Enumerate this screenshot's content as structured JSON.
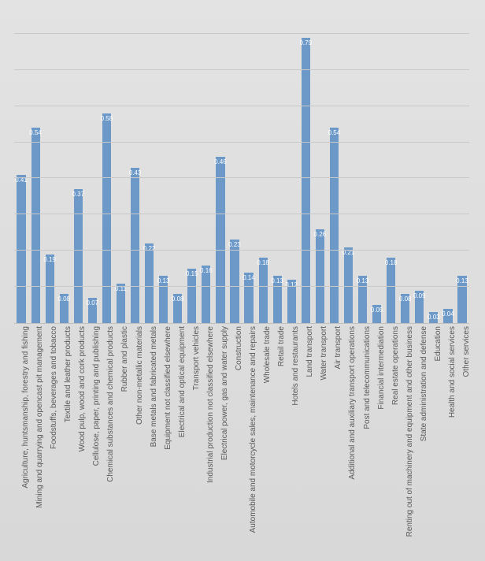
{
  "chart": {
    "type": "bar",
    "background_gradient": [
      "#e3e3e3",
      "#d8d8d8"
    ],
    "bar_color": "#6c99c8",
    "grid_color": "#c9c9c9",
    "label_color": "#5a5a5a",
    "value_label_color": "#ffffff",
    "ylim": [
      0,
      0.85
    ],
    "ytick_step": 0.1,
    "label_fontsize": 10,
    "value_label_fontsize": 8,
    "categories": [
      "Agriculture, huntsmanship, forestry and fishing",
      "Mining and quarrying and opencast pit management",
      "Foodstuffs, beverages and tobacco",
      "Textile and leather products",
      "Wood pulp, wood and cork products",
      "Cellulose, paper, printing and publishing",
      "Chemical substances and chemical products",
      "Rubber and plastic",
      "Other non-metallic materials",
      "Base metals and fabricated metals",
      "Equipment not classified elsewhere",
      "Electrical and optical equipment",
      "Transport vehicles",
      "Industrial production not classified elsewhere",
      "Electrical power, gas and water supply",
      "Construction",
      "Automobile and motorcycle sales, maintenance and repairs",
      "Wholesale trade",
      "Retail trade",
      "Hotels and restaurants",
      "Land transport",
      "Water transport",
      "Air transport",
      "Additional and auxiliary transport operations",
      "Post and telecommunications",
      "Financial intermediation",
      "Real estate operations",
      "Renting out of machinery and equipment and other business",
      "State administration and defense",
      "Education",
      "Health and social services",
      "Other services"
    ],
    "values": [
      0.41,
      0.54,
      0.19,
      0.08,
      0.37,
      0.07,
      0.58,
      0.11,
      0.43,
      0.22,
      0.13,
      0.08,
      0.15,
      0.16,
      0.46,
      0.23,
      0.14,
      0.18,
      0.13,
      0.12,
      0.79,
      0.26,
      0.54,
      0.21,
      0.13,
      0.05,
      0.18,
      0.08,
      0.09,
      0.03,
      0.04,
      0.13
    ],
    "value_labels": [
      "0.41",
      "0.54",
      "0.19",
      "0.08",
      "0.37",
      "0.07",
      "0.58",
      "0.11",
      "0.43",
      "0.22",
      "0.13",
      "0.08",
      "0.15",
      "0.16",
      "0.46",
      "0.23",
      "0.14",
      "0.18",
      "0.13",
      "0.12",
      "0.79",
      "0.26",
      "0.54",
      "0.21",
      "0.13",
      "0.05",
      "0.18",
      "0.08",
      "0.09",
      "0.03",
      "0.04",
      "0.13"
    ]
  }
}
